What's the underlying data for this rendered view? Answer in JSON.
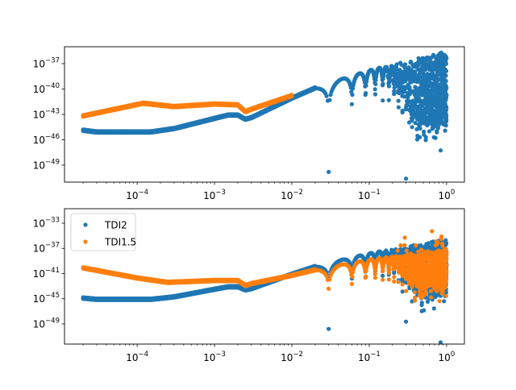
{
  "chart_data": [
    {
      "type": "scatter",
      "xscale": "log",
      "yscale": "log",
      "xlim": [
        1.15e-05,
        1.7
      ],
      "ylim": [
        1e-51,
        1e-35
      ],
      "xticks": [
        {
          "value": 0.0001,
          "label": "10",
          "exp": "−4"
        },
        {
          "value": 0.001,
          "label": "10",
          "exp": "−3"
        },
        {
          "value": 0.01,
          "label": "10",
          "exp": "−2"
        },
        {
          "value": 0.1,
          "label": "10",
          "exp": "−1"
        },
        {
          "value": 1,
          "label": "10",
          "exp": "0"
        }
      ],
      "yticks": [
        {
          "value": 1e-37,
          "label": "10",
          "exp": "−37"
        },
        {
          "value": 1e-40,
          "label": "10",
          "exp": "−40"
        },
        {
          "value": 1e-43,
          "label": "10",
          "exp": "−43"
        },
        {
          "value": 1e-46,
          "label": "10",
          "exp": "−46"
        },
        {
          "value": 1e-49,
          "label": "10",
          "exp": "−49"
        }
      ],
      "grid": false,
      "legend": null,
      "series": [
        {
          "color": "#1f77b4",
          "x": [
            2e-05,
            3e-05,
            0.00015,
            0.0003,
            0.001,
            0.0015,
            0.002,
            0.0025,
            0.003,
            0.01,
            0.02,
            0.1,
            1
          ],
          "y": [
            1.6e-45,
            1e-45,
            1e-45,
            2.5e-45,
            4e-44,
            1e-43,
            1e-43,
            3.2e-44,
            5e-44,
            1e-41,
            1.6e-40,
            1.6e-38,
            3.2e-36
          ]
        },
        {
          "color": "#ff7f0e",
          "x": [
            2e-05,
            0.00012,
            0.0003,
            0.001,
            0.002,
            0.0025,
            0.003,
            0.01
          ],
          "y": [
            7.9e-44,
            2.5e-42,
            1e-42,
            2e-42,
            1.6e-42,
            2.5e-43,
            5e-43,
            2e-41
          ]
        }
      ]
    },
    {
      "type": "scatter",
      "xscale": "log",
      "yscale": "log",
      "xlim": [
        1.15e-05,
        1.7
      ],
      "ylim": [
        6.3e-53,
        2e-31
      ],
      "xticks": [
        {
          "value": 0.0001,
          "label": "10",
          "exp": "−4"
        },
        {
          "value": 0.001,
          "label": "10",
          "exp": "−3"
        },
        {
          "value": 0.01,
          "label": "10",
          "exp": "−2"
        },
        {
          "value": 0.1,
          "label": "10",
          "exp": "−1"
        },
        {
          "value": 1,
          "label": "10",
          "exp": "0"
        }
      ],
      "yticks": [
        {
          "value": 1e-33,
          "label": "10",
          "exp": "−33"
        },
        {
          "value": 1e-37,
          "label": "10",
          "exp": "−37"
        },
        {
          "value": 1e-41,
          "label": "10",
          "exp": "−41"
        },
        {
          "value": 1e-45,
          "label": "10",
          "exp": "−45"
        },
        {
          "value": 1e-49,
          "label": "10",
          "exp": "−49"
        }
      ],
      "grid": false,
      "legend": "upper-left",
      "series": [
        {
          "name": "TDI2",
          "color": "#1f77b4",
          "x": [
            2e-05,
            3e-05,
            0.00015,
            0.0003,
            0.001,
            0.0015,
            0.002,
            0.0025,
            0.003,
            0.01,
            0.02,
            0.1,
            1
          ],
          "y": [
            1.6e-45,
            1e-45,
            1e-45,
            2.5e-45,
            4e-44,
            1e-43,
            1e-43,
            3.2e-44,
            5e-44,
            1e-41,
            1.6e-40,
            1.6e-38,
            3.2e-36
          ]
        },
        {
          "name": "TDI1.5",
          "color": "#ff7f0e",
          "x": [
            2e-05,
            0.0001,
            0.00025,
            0.001,
            0.002,
            0.0025,
            0.003,
            0.01,
            0.02,
            0.1,
            1
          ],
          "y": [
            1e-40,
            2.5e-42,
            5e-43,
            1e-42,
            1e-42,
            1.6e-43,
            3.2e-43,
            6.3e-42,
            5e-41,
            1.6e-39,
            1e-37
          ]
        }
      ]
    }
  ]
}
